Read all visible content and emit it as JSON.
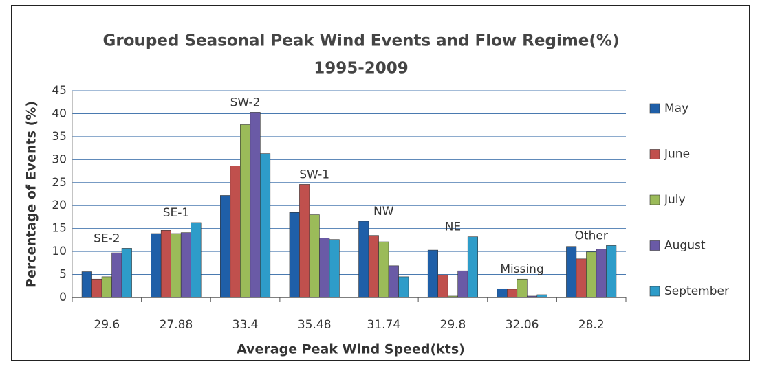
{
  "chart_data": {
    "type": "bar",
    "title": "Grouped Seasonal Peak Wind Events and Flow Regime(%)",
    "subtitle": "1995-2009",
    "x_label": "Average Peak Wind Speed(kts)",
    "y_label": "Percentage of Events (%)",
    "categories": [
      "29.6",
      "27.88",
      "33.4",
      "35.48",
      "31.74",
      "29.8",
      "32.06",
      "28.2"
    ],
    "annotations": [
      "SE-2",
      "SE-1",
      "SW-2",
      "SW-1",
      "NW",
      "NE",
      "Missing",
      "Other"
    ],
    "series": [
      {
        "name": "May",
        "color": "#1f5fa8",
        "values": [
          5.6,
          13.9,
          22.2,
          18.5,
          16.6,
          10.3,
          1.9,
          11.1
        ]
      },
      {
        "name": "June",
        "color": "#c0504d",
        "values": [
          4,
          14.6,
          28.6,
          24.6,
          13.5,
          4.9,
          1.8,
          8.4
        ]
      },
      {
        "name": "July",
        "color": "#9bbb59",
        "values": [
          4.5,
          13.9,
          37.6,
          18,
          12.1,
          0.3,
          4,
          9.9
        ]
      },
      {
        "name": "August",
        "color": "#6a5aa6",
        "values": [
          9.7,
          14.1,
          40.3,
          12.9,
          6.9,
          5.8,
          0.3,
          10.5
        ]
      },
      {
        "name": "September",
        "color": "#2e9cc9",
        "values": [
          10.7,
          16.3,
          31.3,
          12.6,
          4.5,
          13.2,
          0.6,
          11.3
        ]
      }
    ],
    "ylim": [
      0,
      45
    ],
    "yticks": [
      0,
      5,
      10,
      15,
      20,
      25,
      30,
      35,
      40,
      45
    ],
    "grid": true,
    "legend": "right"
  }
}
